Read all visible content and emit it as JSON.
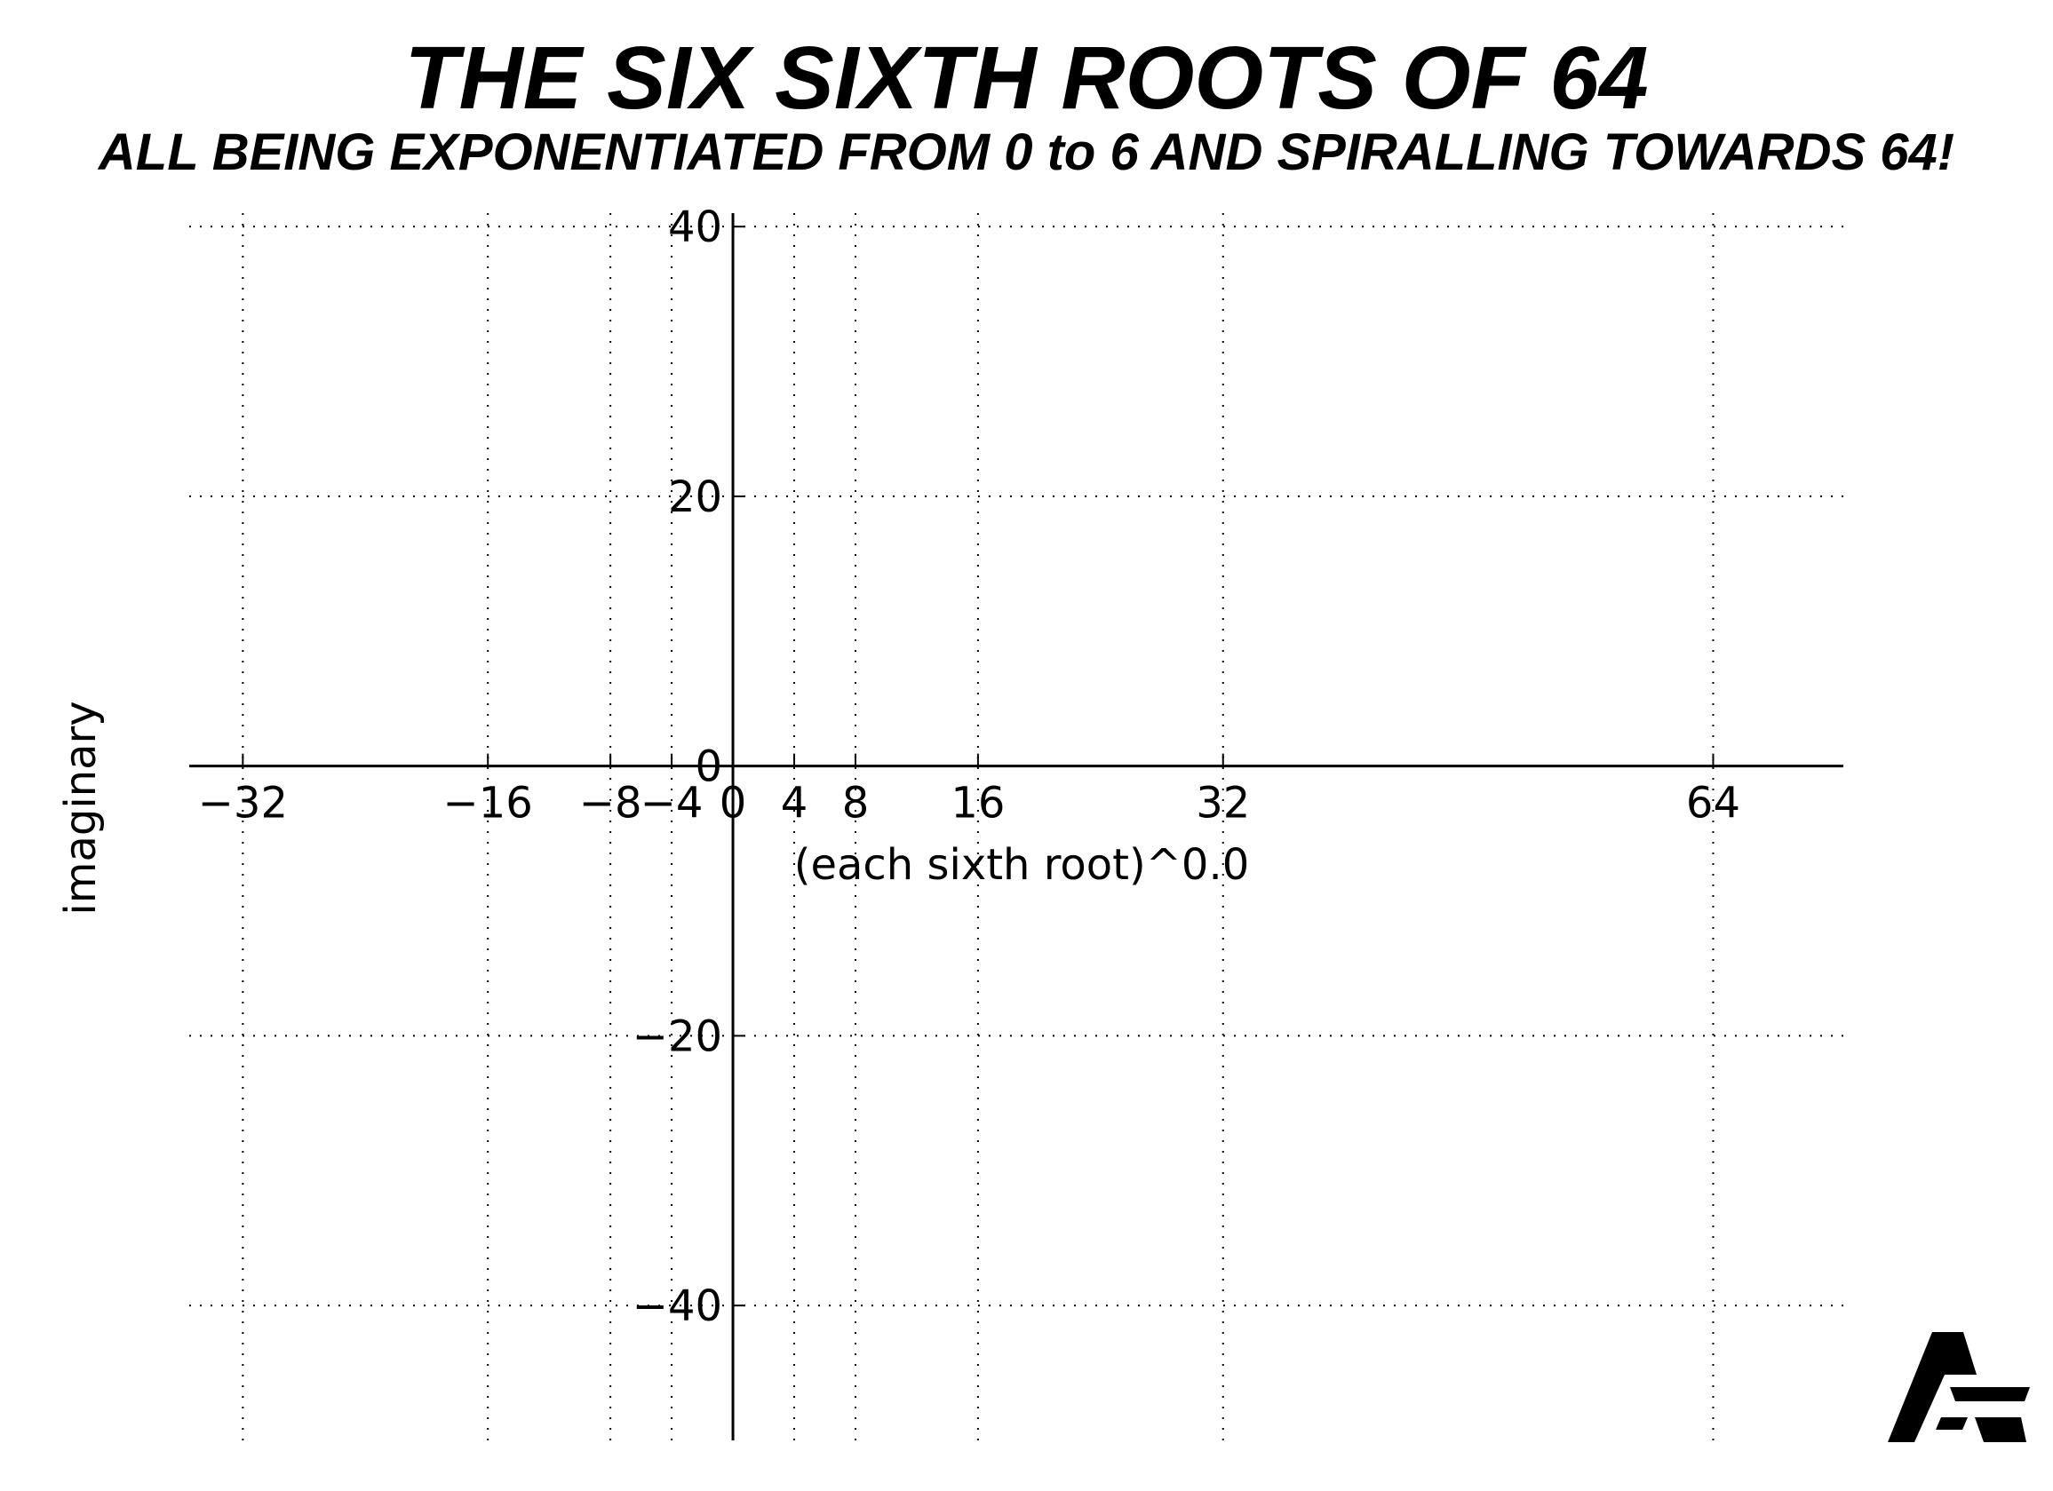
{
  "chart_data": {
    "type": "line",
    "title": "THE SIX SIXTH ROOTS OF 64",
    "subtitle": "ALL BEING EXPONENTIATED FROM 0 to 6 AND SPIRALLING TOWARDS 64!",
    "xlabel": "(each sixth root)^0.0",
    "ylabel": "imaginary",
    "xlim": [
      -35.5,
      72.5
    ],
    "ylim": [
      -50,
      41
    ],
    "grid": true,
    "grid_style": "dotted",
    "x_ticks": [
      -32,
      -16,
      -8,
      -4,
      0,
      4,
      8,
      16,
      32,
      64
    ],
    "x_tick_labels": [
      "−32",
      "−16",
      "−8",
      "−4",
      "0",
      "4",
      "8",
      "16",
      "32",
      "64"
    ],
    "y_ticks": [
      -40,
      -20,
      0,
      20,
      40
    ],
    "y_tick_labels": [
      "−40",
      "−20",
      "0",
      "20",
      "40"
    ],
    "series": []
  },
  "colors": {
    "axis": "#000000",
    "grid": "#000000",
    "background": "#ffffff"
  },
  "logo": {
    "icon": "stylized-letter-a-logo-icon"
  }
}
